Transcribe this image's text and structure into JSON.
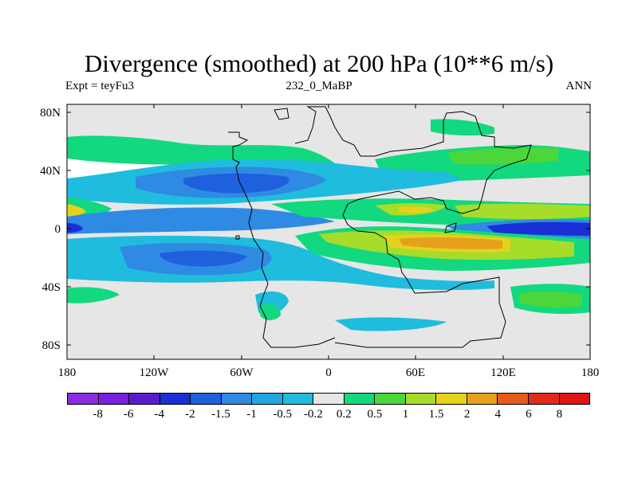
{
  "title": "Divergence (smoothed) at 200 hPa (10**6 m/s)",
  "subtitle_left": "Expt = teyFu3",
  "subtitle_center": "232_0_MaBP",
  "subtitle_right": "ANN",
  "y_axis_labels": [
    "80N",
    "40N",
    "0",
    "40S",
    "80S"
  ],
  "x_axis_labels": [
    "180",
    "120W",
    "60W",
    "0",
    "60E",
    "120E",
    "180"
  ],
  "colorbar": {
    "colors": [
      "#8a2be2",
      "#7a1fe0",
      "#5a1bd0",
      "#1a2fd6",
      "#1f60dc",
      "#2f8ae3",
      "#1fa8e0",
      "#20bcde",
      "#e6e6e6",
      "#12d87f",
      "#4bd63c",
      "#a6dc2a",
      "#e6d21c",
      "#e6a01c",
      "#e65a1c",
      "#e22a1c",
      "#e01414"
    ],
    "labels": [
      "-8",
      "-6",
      "-4",
      "-2",
      "-1.5",
      "-1",
      "-0.5",
      "-0.2",
      "0.2",
      "0.5",
      "1",
      "1.5",
      "2",
      "4",
      "6",
      "8"
    ]
  },
  "palette": {
    "background": "#e6e6e6",
    "light_blue": "#20bcde",
    "blue": "#2f8ae3",
    "dark_blue": "#1f60dc",
    "deep_blue": "#1a2fd6",
    "light_green": "#12d87f",
    "green": "#4bd63c",
    "yellow_green": "#a6dc2a",
    "yellow": "#e6d21c",
    "orange": "#e6a01c",
    "white": "#ffffff"
  }
}
